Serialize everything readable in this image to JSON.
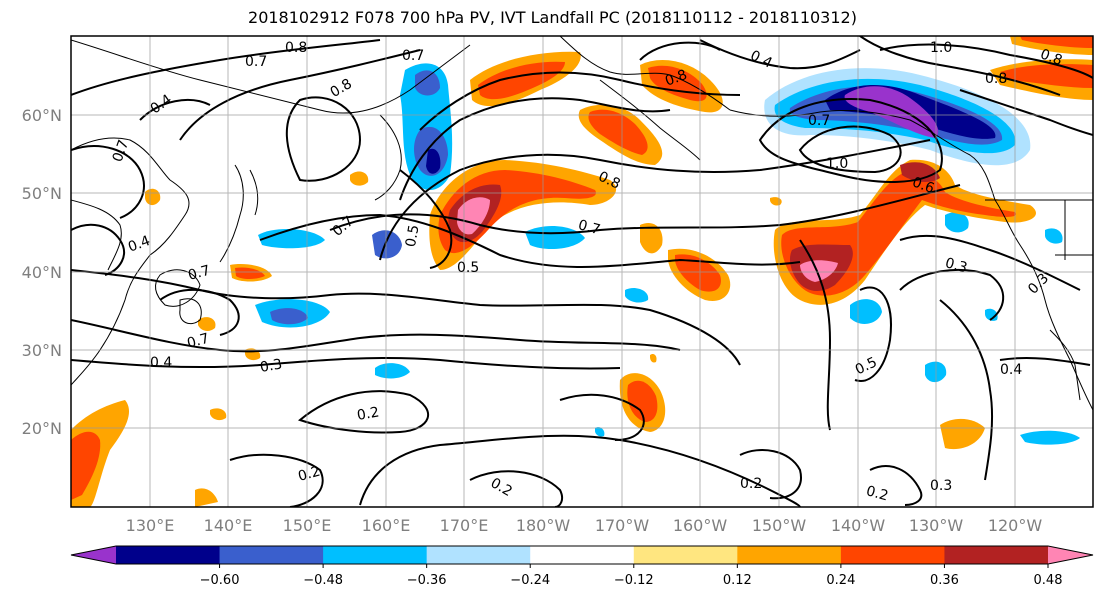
{
  "title": "2018102912 F078 700 hPa PV, IVT Landfall PC (2018110112 - 2018110312)",
  "lat_labels": [
    "60°N",
    "50°N",
    "40°N",
    "30°N",
    "20°N"
  ],
  "lon_labels": [
    "130°E",
    "140°E",
    "150°E",
    "160°E",
    "170°E",
    "180°W",
    "170°W",
    "160°W",
    "150°W",
    "140°W",
    "130°W",
    "120°W"
  ],
  "colorbar": {
    "ticks": [
      "−0.60",
      "−0.48",
      "−0.36",
      "−0.24",
      "−0.12",
      "0.12",
      "0.24",
      "0.36",
      "0.48",
      "0.60"
    ],
    "colors": [
      "#9933cc",
      "#00008b",
      "#3a5fcd",
      "#00bfff",
      "#b0e2ff",
      "#ffffff",
      "#ffe680",
      "#ffa500",
      "#ff4500",
      "#b22222",
      "#ff85b4"
    ]
  },
  "contour_labels": [
    "0.8",
    "0.7",
    "0.7",
    "0.8",
    "0.4",
    "0.7",
    "0.4",
    "0.8",
    "1.0",
    "0.8",
    "0.8",
    "0.7",
    "1.0",
    "0.6",
    "0.8",
    "0.7",
    "0.7",
    "0.5",
    "0.4",
    "0.7",
    "0.5",
    "0.3",
    "0.3",
    "0.7",
    "0.4",
    "0.3",
    "0.5",
    "0.4",
    "0.2",
    "0.2",
    "0.2",
    "0.2",
    "0.2",
    "0.3"
  ]
}
